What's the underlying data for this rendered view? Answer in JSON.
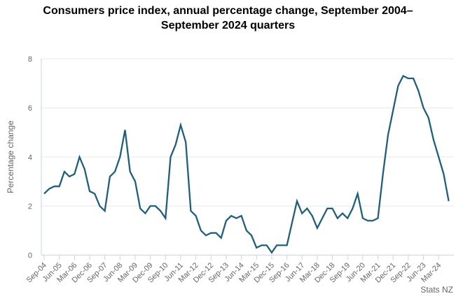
{
  "colors": {
    "line": "#1e5f7d",
    "grid": "#e8e8e8",
    "axis": "#c9d2ed",
    "text_gray": "#666666",
    "title_text": "#000000",
    "background": "#ffffff"
  },
  "chart_data": {
    "type": "line",
    "title": "Consumers price index, annual percentage change, September 2004–September 2024 quarters",
    "xlabel": "",
    "ylabel": "Percentage change",
    "source": "Stats NZ",
    "ylim": [
      0,
      8
    ],
    "y_ticks": [
      0,
      2,
      4,
      6,
      8
    ],
    "grid": true,
    "legend": false,
    "x_tick_every": 3,
    "x_tick_labels": [
      "Sep-04",
      "Jun-05",
      "Mar-06",
      "Dec-06",
      "Sep-07",
      "Jun-08",
      "Mar-09",
      "Dec-09",
      "Sep-10",
      "Jun-11",
      "Mar-12",
      "Dec-12",
      "Sep-13",
      "Jun-14",
      "Mar-15",
      "Dec-15",
      "Sep-16",
      "Jun-17",
      "Mar-18",
      "Dec-18",
      "Sep-19",
      "Jun-20",
      "Mar-21",
      "Dec-21",
      "Sep-22",
      "Jun-23",
      "Mar-24"
    ],
    "categories": [
      "Sep-04",
      "Dec-04",
      "Mar-05",
      "Jun-05",
      "Sep-05",
      "Dec-05",
      "Mar-06",
      "Jun-06",
      "Sep-06",
      "Dec-06",
      "Mar-07",
      "Jun-07",
      "Sep-07",
      "Dec-07",
      "Mar-08",
      "Jun-08",
      "Sep-08",
      "Dec-08",
      "Mar-09",
      "Jun-09",
      "Sep-09",
      "Dec-09",
      "Mar-10",
      "Jun-10",
      "Sep-10",
      "Dec-10",
      "Mar-11",
      "Jun-11",
      "Sep-11",
      "Dec-11",
      "Mar-12",
      "Jun-12",
      "Sep-12",
      "Dec-12",
      "Mar-13",
      "Jun-13",
      "Sep-13",
      "Dec-13",
      "Mar-14",
      "Jun-14",
      "Sep-14",
      "Dec-14",
      "Mar-15",
      "Jun-15",
      "Sep-15",
      "Dec-15",
      "Mar-16",
      "Jun-16",
      "Sep-16",
      "Dec-16",
      "Mar-17",
      "Jun-17",
      "Sep-17",
      "Dec-17",
      "Mar-18",
      "Jun-18",
      "Sep-18",
      "Dec-18",
      "Mar-19",
      "Jun-19",
      "Sep-19",
      "Dec-19",
      "Mar-20",
      "Jun-20",
      "Sep-20",
      "Dec-20",
      "Mar-21",
      "Jun-21",
      "Sep-21",
      "Dec-21",
      "Mar-22",
      "Jun-22",
      "Sep-22",
      "Dec-22",
      "Mar-23",
      "Jun-23",
      "Sep-23",
      "Dec-23",
      "Mar-24",
      "Jun-24",
      "Sep-24"
    ],
    "values": [
      2.5,
      2.7,
      2.8,
      2.8,
      3.4,
      3.2,
      3.3,
      4.0,
      3.5,
      2.6,
      2.5,
      2.0,
      1.8,
      3.2,
      3.4,
      4.0,
      5.1,
      3.4,
      3.0,
      1.9,
      1.7,
      2.0,
      2.0,
      1.8,
      1.5,
      4.0,
      4.5,
      5.3,
      4.6,
      1.8,
      1.6,
      1.0,
      0.8,
      0.9,
      0.9,
      0.7,
      1.4,
      1.6,
      1.5,
      1.6,
      1.0,
      0.8,
      0.3,
      0.4,
      0.4,
      0.1,
      0.4,
      0.4,
      0.4,
      1.3,
      2.2,
      1.7,
      1.9,
      1.6,
      1.1,
      1.5,
      1.9,
      1.9,
      1.5,
      1.7,
      1.5,
      1.9,
      2.5,
      1.5,
      1.4,
      1.4,
      1.5,
      3.3,
      4.9,
      5.9,
      6.9,
      7.3,
      7.2,
      7.2,
      6.7,
      6.0,
      5.6,
      4.7,
      4.0,
      3.3,
      2.2
    ]
  }
}
